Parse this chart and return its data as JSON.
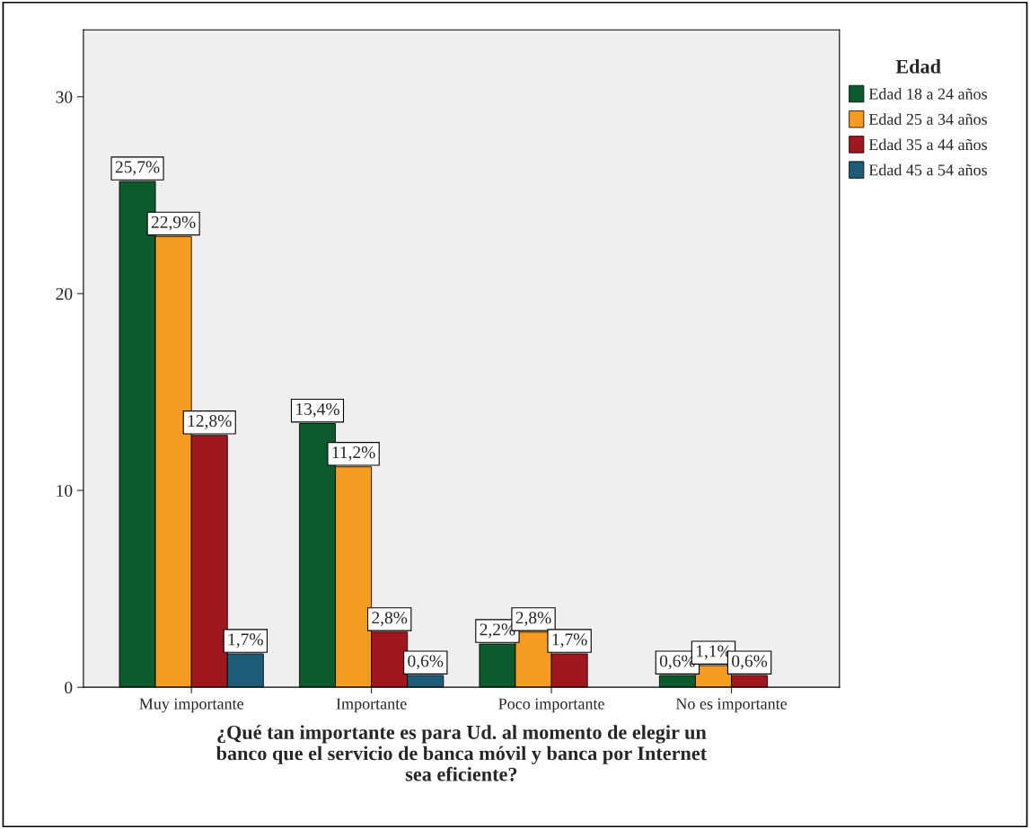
{
  "chart_data": {
    "type": "bar",
    "xlabel": "¿Qué tan importante es para Ud. al momento de elegir un\nbanco que el servicio de banca móvil y banca por Internet\nsea eficiente?",
    "legend_title": "Edad",
    "categories": [
      "Muy importante",
      "Importante",
      "Poco importante",
      "No es importante"
    ],
    "series": [
      {
        "name": "Edad 18 a 24 años",
        "color": "#0d5a2e",
        "values": [
          25.7,
          13.4,
          2.2,
          0.6
        ],
        "value_labels": [
          "25,7%",
          "13,4%",
          "2,2%",
          "0,6%"
        ]
      },
      {
        "name": "Edad 25 a 34 años",
        "color": "#f59c21",
        "values": [
          22.9,
          11.2,
          2.8,
          1.1
        ],
        "value_labels": [
          "22,9%",
          "11,2%",
          "2,8%",
          "1,1%"
        ]
      },
      {
        "name": "Edad 35 a 44 años",
        "color": "#a0181e",
        "values": [
          12.8,
          2.8,
          1.7,
          0.6
        ],
        "value_labels": [
          "12,8%",
          "2,8%",
          "1,7%",
          "0,6%"
        ]
      },
      {
        "name": "Edad 45 a 54 años",
        "color": "#1e5c78",
        "values": [
          1.7,
          0.6,
          null,
          null
        ],
        "value_labels": [
          "1,7%",
          "0,6%",
          null,
          null
        ]
      }
    ],
    "ylim": [
      0,
      33.4
    ],
    "yticks": [
      0,
      10,
      20,
      30
    ],
    "grid": false,
    "legend": "top right"
  }
}
